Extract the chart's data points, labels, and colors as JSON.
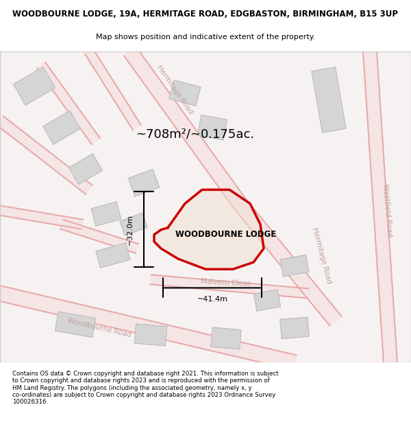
{
  "title_line1": "WOODBOURNE LODGE, 19A, HERMITAGE ROAD, EDGBASTON, BIRMINGHAM, B15 3UP",
  "title_line2": "Map shows position and indicative extent of the property.",
  "footer_text": "Contains OS data © Crown copyright and database right 2021. This information is subject\nto Crown copyright and database rights 2023 and is reproduced with the permission of\nHM Land Registry. The polygons (including the associated geometry, namely x, y\nco-ordinates) are subject to Crown copyright and database rights 2023 Ordnance Survey\n100026316.",
  "map_bg_color": "#f8f5f5",
  "road_fill_color": "#f5e8e8",
  "road_border_color": "#e8b0b0",
  "building_color": "#d8d8d8",
  "building_border": "#c0c0c0",
  "plot_fill_color": "#f0e0d0",
  "plot_border_color": "#cc0000",
  "plot_label": "WOODBOURNE LODGE",
  "area_label": "~708m²/~0.175ac.",
  "dim_width": "~41.4m",
  "dim_height": "~32.0m",
  "road_label_color": "#c0a0a0",
  "street_label_color": "#b0b0b0"
}
